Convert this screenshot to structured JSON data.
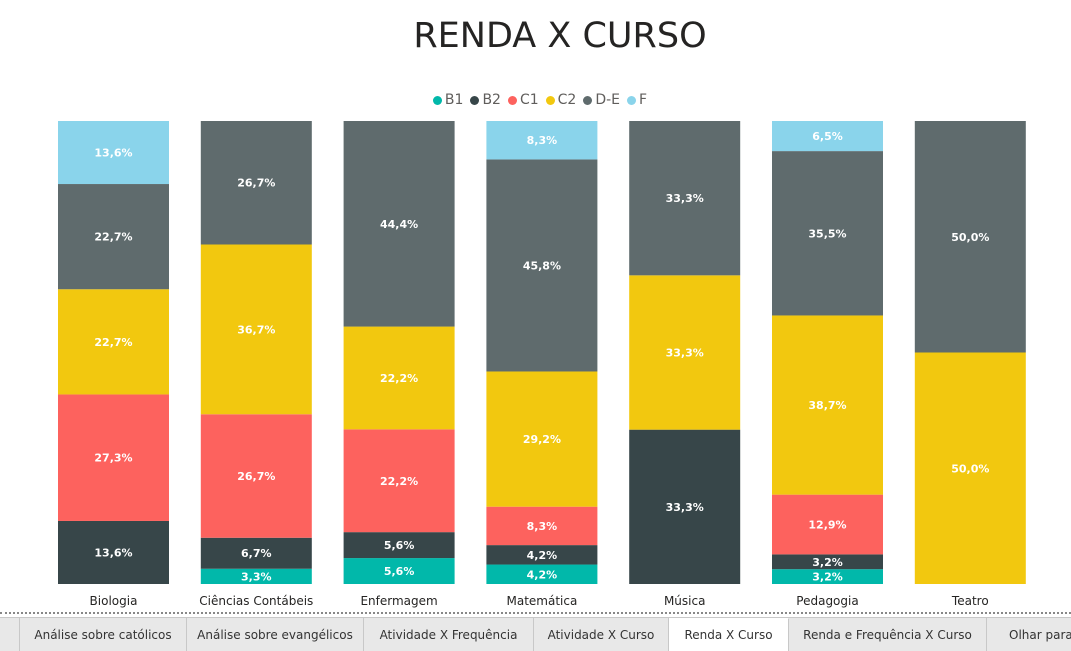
{
  "chart_data": {
    "type": "bar",
    "stacked": true,
    "percent": true,
    "title": "RENDA X CURSO",
    "legend_position": "top-center",
    "categories": [
      "Biologia",
      "Ciências Contábeis",
      "Enfermagem",
      "Matemática",
      "Música",
      "Pedagogia",
      "Teatro"
    ],
    "series": [
      {
        "name": "B1",
        "color": "#01b8aa",
        "values": [
          0,
          3.3,
          5.6,
          4.2,
          0,
          3.2,
          0
        ],
        "labels": [
          "",
          "3,3%",
          "5,6%",
          "4,2%",
          "",
          "3,2%",
          ""
        ]
      },
      {
        "name": "B2",
        "color": "#374649",
        "values": [
          13.6,
          6.7,
          5.6,
          4.2,
          33.3,
          3.2,
          0
        ],
        "labels": [
          "13,6%",
          "6,7%",
          "5,6%",
          "4,2%",
          "33,3%",
          "3,2%",
          ""
        ]
      },
      {
        "name": "C1",
        "color": "#fd625e",
        "values": [
          27.3,
          26.7,
          22.2,
          8.3,
          0,
          12.9,
          0
        ],
        "labels": [
          "27,3%",
          "26,7%",
          "22,2%",
          "8,3%",
          "",
          "12,9%",
          ""
        ]
      },
      {
        "name": "C2",
        "color": "#f2c80f",
        "values": [
          22.7,
          36.7,
          22.2,
          29.2,
          33.3,
          38.7,
          50.0
        ],
        "labels": [
          "22,7%",
          "36,7%",
          "22,2%",
          "29,2%",
          "33,3%",
          "38,7%",
          "50,0%"
        ]
      },
      {
        "name": "D-E",
        "color": "#5f6b6d",
        "values": [
          22.7,
          26.7,
          44.4,
          45.8,
          33.3,
          35.5,
          50.0
        ],
        "labels": [
          "22,7%",
          "26,7%",
          "44,4%",
          "45,8%",
          "33,3%",
          "35,5%",
          "50,0%"
        ]
      },
      {
        "name": "F",
        "color": "#8ad4eb",
        "values": [
          13.6,
          0,
          0,
          8.3,
          0,
          6.5,
          0
        ],
        "labels": [
          "13,6%",
          "",
          "",
          "8,3%",
          "",
          "6,5%",
          ""
        ]
      }
    ]
  },
  "tabs": [
    {
      "label": "",
      "active": false
    },
    {
      "label": "Análise sobre católicos",
      "active": false
    },
    {
      "label": "Análise sobre evangélicos",
      "active": false
    },
    {
      "label": "Atividade X Frequência",
      "active": false
    },
    {
      "label": "Atividade X Curso",
      "active": false
    },
    {
      "label": "Renda X Curso",
      "active": true
    },
    {
      "label": "Renda e Frequência X Curso",
      "active": false
    },
    {
      "label": "Olhar para a",
      "active": false
    }
  ]
}
